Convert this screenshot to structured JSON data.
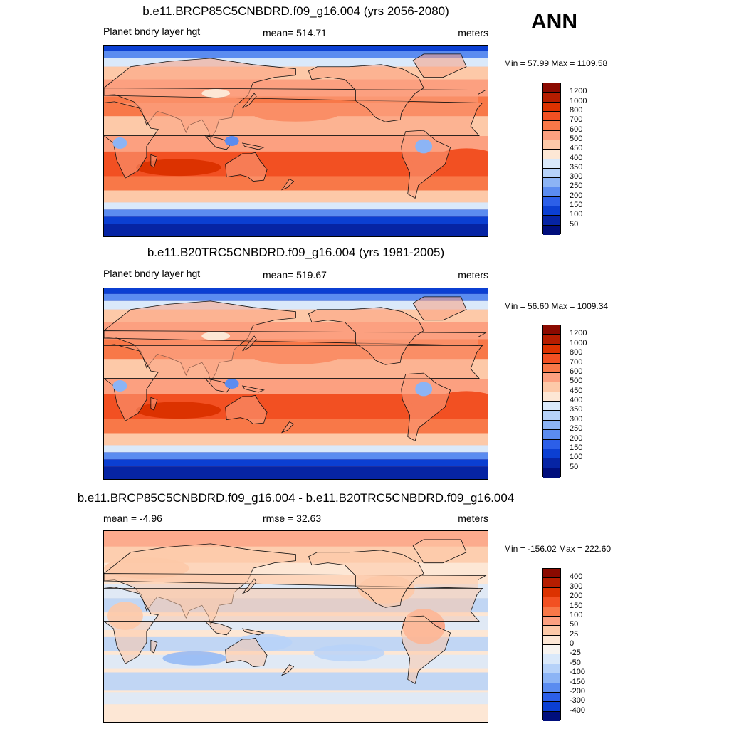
{
  "season": "ANN",
  "panels": [
    {
      "title": "b.e11.BRCP85C5CNBDRD.f09_g16.004 (yrs 2056-2080)",
      "left_label": "Planet bndry layer hgt",
      "center_label": "mean= 514.71",
      "right_label": "meters",
      "minmax": "Min =  57.99 Max = 1109.58",
      "colorbar_labels": [
        "1200",
        "1000",
        "800",
        "700",
        "600",
        "500",
        "450",
        "400",
        "350",
        "300",
        "250",
        "200",
        "150",
        "100",
        "50"
      ],
      "map_style": "absolute_future"
    },
    {
      "title": "b.e11.B20TRC5CNBDRD.f09_g16.004 (yrs 1981-2005)",
      "left_label": "Planet bndry layer hgt",
      "center_label": "mean= 519.67",
      "right_label": "meters",
      "minmax": "Min =  56.60 Max = 1009.34",
      "colorbar_labels": [
        "1200",
        "1000",
        "800",
        "700",
        "600",
        "500",
        "450",
        "400",
        "350",
        "300",
        "250",
        "200",
        "150",
        "100",
        "50"
      ],
      "map_style": "absolute_past"
    },
    {
      "title": "b.e11.BRCP85C5CNBDRD.f09_g16.004 - b.e11.B20TRC5CNBDRD.f09_g16.004",
      "left_label": "mean =  -4.96",
      "center_label": "rmse =  32.63",
      "right_label": "meters",
      "minmax": "Min = -156.02 Max = 222.60",
      "colorbar_labels": [
        "400",
        "300",
        "200",
        "150",
        "100",
        "50",
        "25",
        "0",
        "-25",
        "-50",
        "-100",
        "-150",
        "-200",
        "-300",
        "-400"
      ],
      "map_style": "difference"
    }
  ],
  "colors": {
    "abs_scale": [
      "#8b0a00",
      "#b51d00",
      "#dc3200",
      "#f25022",
      "#f87848",
      "#fca080",
      "#fdc9a8",
      "#fde7d5",
      "#dae9fa",
      "#b6d2f9",
      "#8cb4f5",
      "#5b8cf0",
      "#2c5fe8",
      "#0b3fd2",
      "#0624a4",
      "#000e7c"
    ],
    "diff_scale": [
      "#8b0a00",
      "#b51d00",
      "#dc3200",
      "#f25022",
      "#f87848",
      "#fca080",
      "#fdc9a8",
      "#fde7d5",
      "#f7f4f0",
      "#dae9fa",
      "#b6d2f9",
      "#8cb4f5",
      "#5b8cf0",
      "#2c5fe8",
      "#0b3fd2",
      "#000e7c"
    ]
  }
}
